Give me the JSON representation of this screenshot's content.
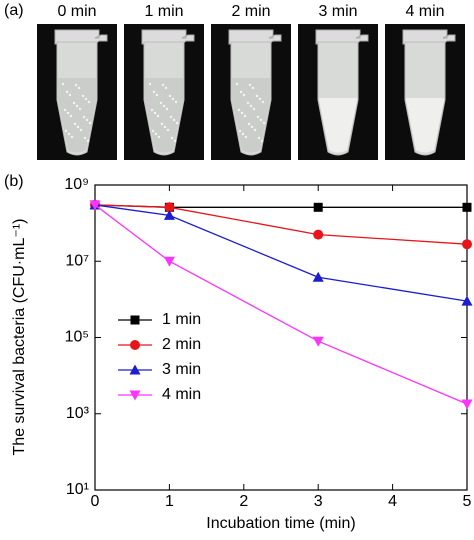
{
  "panel_a": {
    "label": "(a)",
    "tube_labels": [
      "0 min",
      "1 min",
      "2 min",
      "3 min",
      "4 min"
    ]
  },
  "chart_data": {
    "type": "line",
    "panel_label": "(b)",
    "x_label": "Incubation time (min)",
    "y_label": "The survival bacteria (CFU·mL⁻¹)",
    "xlim": [
      0,
      5
    ],
    "xticks": [
      0,
      1,
      2,
      3,
      4,
      5
    ],
    "ylim": [
      10,
      1000000000
    ],
    "log_y": true,
    "yticks": [
      {
        "value": 10,
        "label": "10¹"
      },
      {
        "value": 1000,
        "label": "10³"
      },
      {
        "value": 100000,
        "label": "10⁵"
      },
      {
        "value": 10000000,
        "label": "10⁷"
      },
      {
        "value": 1000000000,
        "label": "10⁹"
      }
    ],
    "legend": "center left",
    "x": [
      0,
      1,
      3,
      5
    ],
    "series": [
      {
        "name": "1 min",
        "color": "#000000",
        "marker": "square",
        "values": [
          300000000,
          260000000,
          260000000,
          260000000
        ]
      },
      {
        "name": "2 min",
        "color": "#e8141a",
        "marker": "circle",
        "values": [
          300000000,
          260000000,
          50000000,
          28000000
        ]
      },
      {
        "name": "3 min",
        "color": "#1c1cd0",
        "marker": "triangle-up",
        "values": [
          300000000,
          160000000,
          3800000,
          900000
        ]
      },
      {
        "name": "4 min",
        "color": "#ff33ff",
        "marker": "triangle-down",
        "values": [
          300000000,
          10000000,
          80000,
          1800
        ]
      }
    ]
  }
}
